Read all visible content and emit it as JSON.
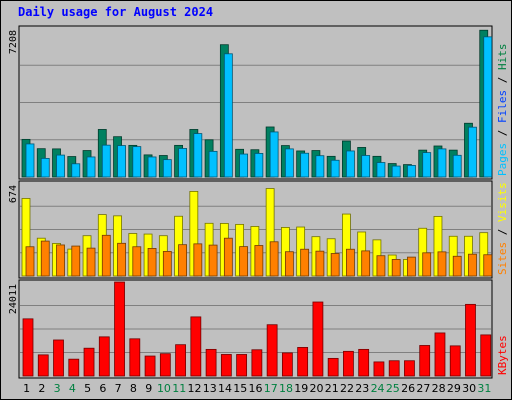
{
  "chart_data": {
    "type": "bar",
    "title": "Daily usage for August 2024",
    "categories": [
      "1",
      "2",
      "3",
      "4",
      "5",
      "6",
      "7",
      "8",
      "9",
      "10",
      "11",
      "12",
      "13",
      "14",
      "15",
      "16",
      "17",
      "18",
      "19",
      "20",
      "21",
      "22",
      "23",
      "24",
      "25",
      "26",
      "27",
      "28",
      "29",
      "30",
      "31"
    ],
    "weekend_days": [
      "3",
      "4",
      "10",
      "11",
      "17",
      "18",
      "24",
      "25",
      "31"
    ],
    "panels": [
      {
        "name": "top",
        "ymax": 7208,
        "ymax_label": "7208",
        "legend": [
          {
            "text": "Pages",
            "color": "#00c0ff"
          },
          {
            "text": " / ",
            "color": "#000000"
          },
          {
            "text": "Files",
            "color": "#0040ff"
          },
          {
            "text": " / ",
            "color": "#000000"
          },
          {
            "text": "Hits",
            "color": "#008040"
          }
        ],
        "series": [
          {
            "name": "Hits",
            "color": "#008060",
            "values": [
              1820,
              1370,
              1360,
              990,
              1280,
              2300,
              1950,
              1530,
              1070,
              1040,
              1530,
              2300,
              1800,
              6400,
              1340,
              1320,
              2420,
              1520,
              1260,
              1280,
              1000,
              1740,
              1430,
              1000,
              650,
              600,
              1300,
              1500,
              1300,
              2600,
              7100
            ]
          },
          {
            "name": "Files",
            "color": "#00c0ff",
            "values": [
              1600,
              900,
              1060,
              640,
              970,
              1540,
              1520,
              1470,
              970,
              840,
              1380,
              2100,
              1240,
              5960,
              1110,
              1140,
              2180,
              1360,
              1150,
              1030,
              810,
              1260,
              1040,
              700,
              530,
              560,
              1180,
              1360,
              1050,
              2410,
              6780
            ]
          }
        ]
      },
      {
        "name": "middle",
        "ymax": 674,
        "ymax_label": "674",
        "legend": [
          {
            "text": "Sites",
            "color": "#ff8000"
          },
          {
            "text": " / ",
            "color": "#000000"
          },
          {
            "text": "Visits",
            "color": "#ffff00"
          }
        ],
        "series": [
          {
            "name": "Visits",
            "color": "#ffff00",
            "values": [
              562,
              274,
              236,
              195,
              292,
              445,
              436,
              308,
              304,
              292,
              433,
              613,
              382,
              381,
              374,
              359,
              634,
              352,
              355,
              285,
              270,
              449,
              319,
              262,
              152,
              120,
              346,
              432,
              288,
              288,
              314
            ]
          },
          {
            "name": "Sites",
            "color": "#ff8000",
            "values": [
              212,
              253,
              225,
              217,
              202,
              295,
              237,
              212,
              200,
              178,
              227,
              233,
              224,
              274,
              213,
              221,
              248,
              176,
              194,
              180,
              163,
              194,
              182,
              147,
              120,
              137,
              168,
              175,
              143,
              158,
              154
            ]
          }
        ]
      },
      {
        "name": "bottom",
        "ymax": 24011,
        "ymax_label": "24011",
        "legend": [
          {
            "text": "KBytes",
            "color": "#ff0000"
          }
        ],
        "series": [
          {
            "name": "KBytes",
            "color": "#ff0000",
            "values": [
              14600,
              5400,
              9200,
              4300,
              7100,
              10000,
              24000,
              9500,
              5100,
              5700,
              8000,
              15100,
              6800,
              5500,
              5500,
              6700,
              13100,
              5900,
              7300,
              18900,
              4500,
              6300,
              6800,
              3600,
              3900,
              3900,
              7800,
              11000,
              7700,
              18300,
              10500
            ]
          }
        ]
      }
    ]
  }
}
